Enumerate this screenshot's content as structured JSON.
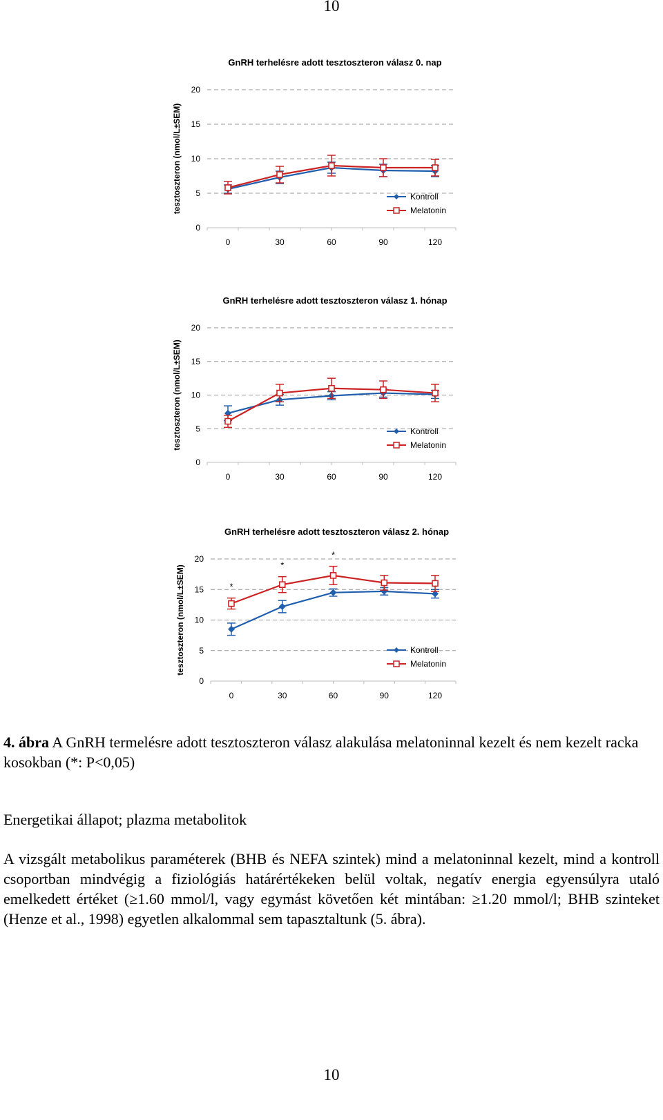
{
  "page_number_top": "10",
  "page_number_bottom": "10",
  "legend": {
    "kontroll": "Kontroll",
    "melatonin": "Melatonin"
  },
  "colors": {
    "kontroll": "#1f5fae",
    "melatonin": "#cc2222",
    "grid": "#999999"
  },
  "chart_data": [
    {
      "type": "line",
      "title": "GnRH terhelésre adott tesztoszteron válasz 0. nap",
      "ylabel": "tesztoszteron (nmol/L±SEM)",
      "xlabel": "",
      "x": [
        0,
        30,
        60,
        90,
        120
      ],
      "x_ticks": [
        "0",
        "30",
        "60",
        "90",
        "120"
      ],
      "y_ticks": [
        "0",
        "5",
        "10",
        "15",
        "20"
      ],
      "ylim": [
        0,
        20
      ],
      "grid": "dashed horizontal",
      "legend_position": "bottom-right",
      "series": [
        {
          "name": "Kontroll",
          "values": [
            5.6,
            7.3,
            8.7,
            8.3,
            8.2
          ],
          "sem": [
            0.6,
            0.9,
            0.8,
            0.9,
            0.8
          ]
        },
        {
          "name": "Melatonin",
          "values": [
            5.8,
            7.7,
            9.0,
            8.7,
            8.7
          ],
          "sem": [
            0.9,
            1.2,
            1.5,
            1.3,
            1.2
          ]
        }
      ],
      "annotations": []
    },
    {
      "type": "line",
      "title": "GnRH terhelésre adott tesztoszteron válasz 1. hónap",
      "ylabel": "tesztoszteron (nmol/L±SEM)",
      "xlabel": "",
      "x": [
        0,
        30,
        60,
        90,
        120
      ],
      "x_ticks": [
        "0",
        "30",
        "60",
        "90",
        "120"
      ],
      "y_ticks": [
        "0",
        "5",
        "10",
        "15",
        "20"
      ],
      "ylim": [
        0,
        20
      ],
      "grid": "dashed horizontal",
      "legend_position": "bottom-right",
      "series": [
        {
          "name": "Kontroll",
          "values": [
            7.3,
            9.3,
            9.9,
            10.3,
            10.1
          ],
          "sem": [
            1.1,
            0.8,
            0.6,
            0.6,
            0.6
          ]
        },
        {
          "name": "Melatonin",
          "values": [
            6.1,
            10.3,
            11.0,
            10.8,
            10.3
          ],
          "sem": [
            0.9,
            1.3,
            1.5,
            1.3,
            1.3
          ]
        }
      ],
      "annotations": []
    },
    {
      "type": "line",
      "title": "GnRH terhelésre adott tesztoszteron válasz 2. hónap",
      "ylabel": "tesztoszteron (nmol/L±SEM)",
      "xlabel": "",
      "x": [
        0,
        30,
        60,
        90,
        120
      ],
      "x_ticks": [
        "0",
        "30",
        "60",
        "90",
        "120"
      ],
      "y_ticks": [
        "0",
        "5",
        "10",
        "15",
        "20"
      ],
      "ylim": [
        0,
        20
      ],
      "grid": "dashed horizontal",
      "legend_position": "bottom-right",
      "series": [
        {
          "name": "Kontroll",
          "values": [
            8.5,
            12.2,
            14.5,
            14.7,
            14.3
          ],
          "sem": [
            1.0,
            1.0,
            0.6,
            0.6,
            0.7
          ]
        },
        {
          "name": "Melatonin",
          "values": [
            12.7,
            15.8,
            17.3,
            16.1,
            16.0
          ],
          "sem": [
            0.9,
            1.3,
            1.5,
            1.2,
            1.3
          ]
        }
      ],
      "annotations": [
        {
          "x": 0,
          "text": "*"
        },
        {
          "x": 30,
          "text": "*"
        },
        {
          "x": 60,
          "text": "*"
        }
      ]
    }
  ],
  "caption": {
    "label": "4. ábra",
    "text": " A GnRH termelésre adott tesztoszteron válasz alakulása melatoninnal kezelt és nem kezelt racka kosokban (*: P<0,05)"
  },
  "section_heading": "Energetikai állapot; plazma metabolitok",
  "body_paragraph": "A vizsgált metabolikus paraméterek (BHB és NEFA szintek) mind a melatoninnal kezelt, mind a kontroll csoportban mindvégig a fiziológiás határértékeken belül voltak, negatív energia egyensúlyra utaló emelkedett értéket (≥1.60 mmol/l, vagy egymást követően két mintában: ≥1.20 mmol/l; BHB szinteket (Henze et al., 1998) egyetlen alkalommal sem tapasztaltunk (5. ábra)."
}
